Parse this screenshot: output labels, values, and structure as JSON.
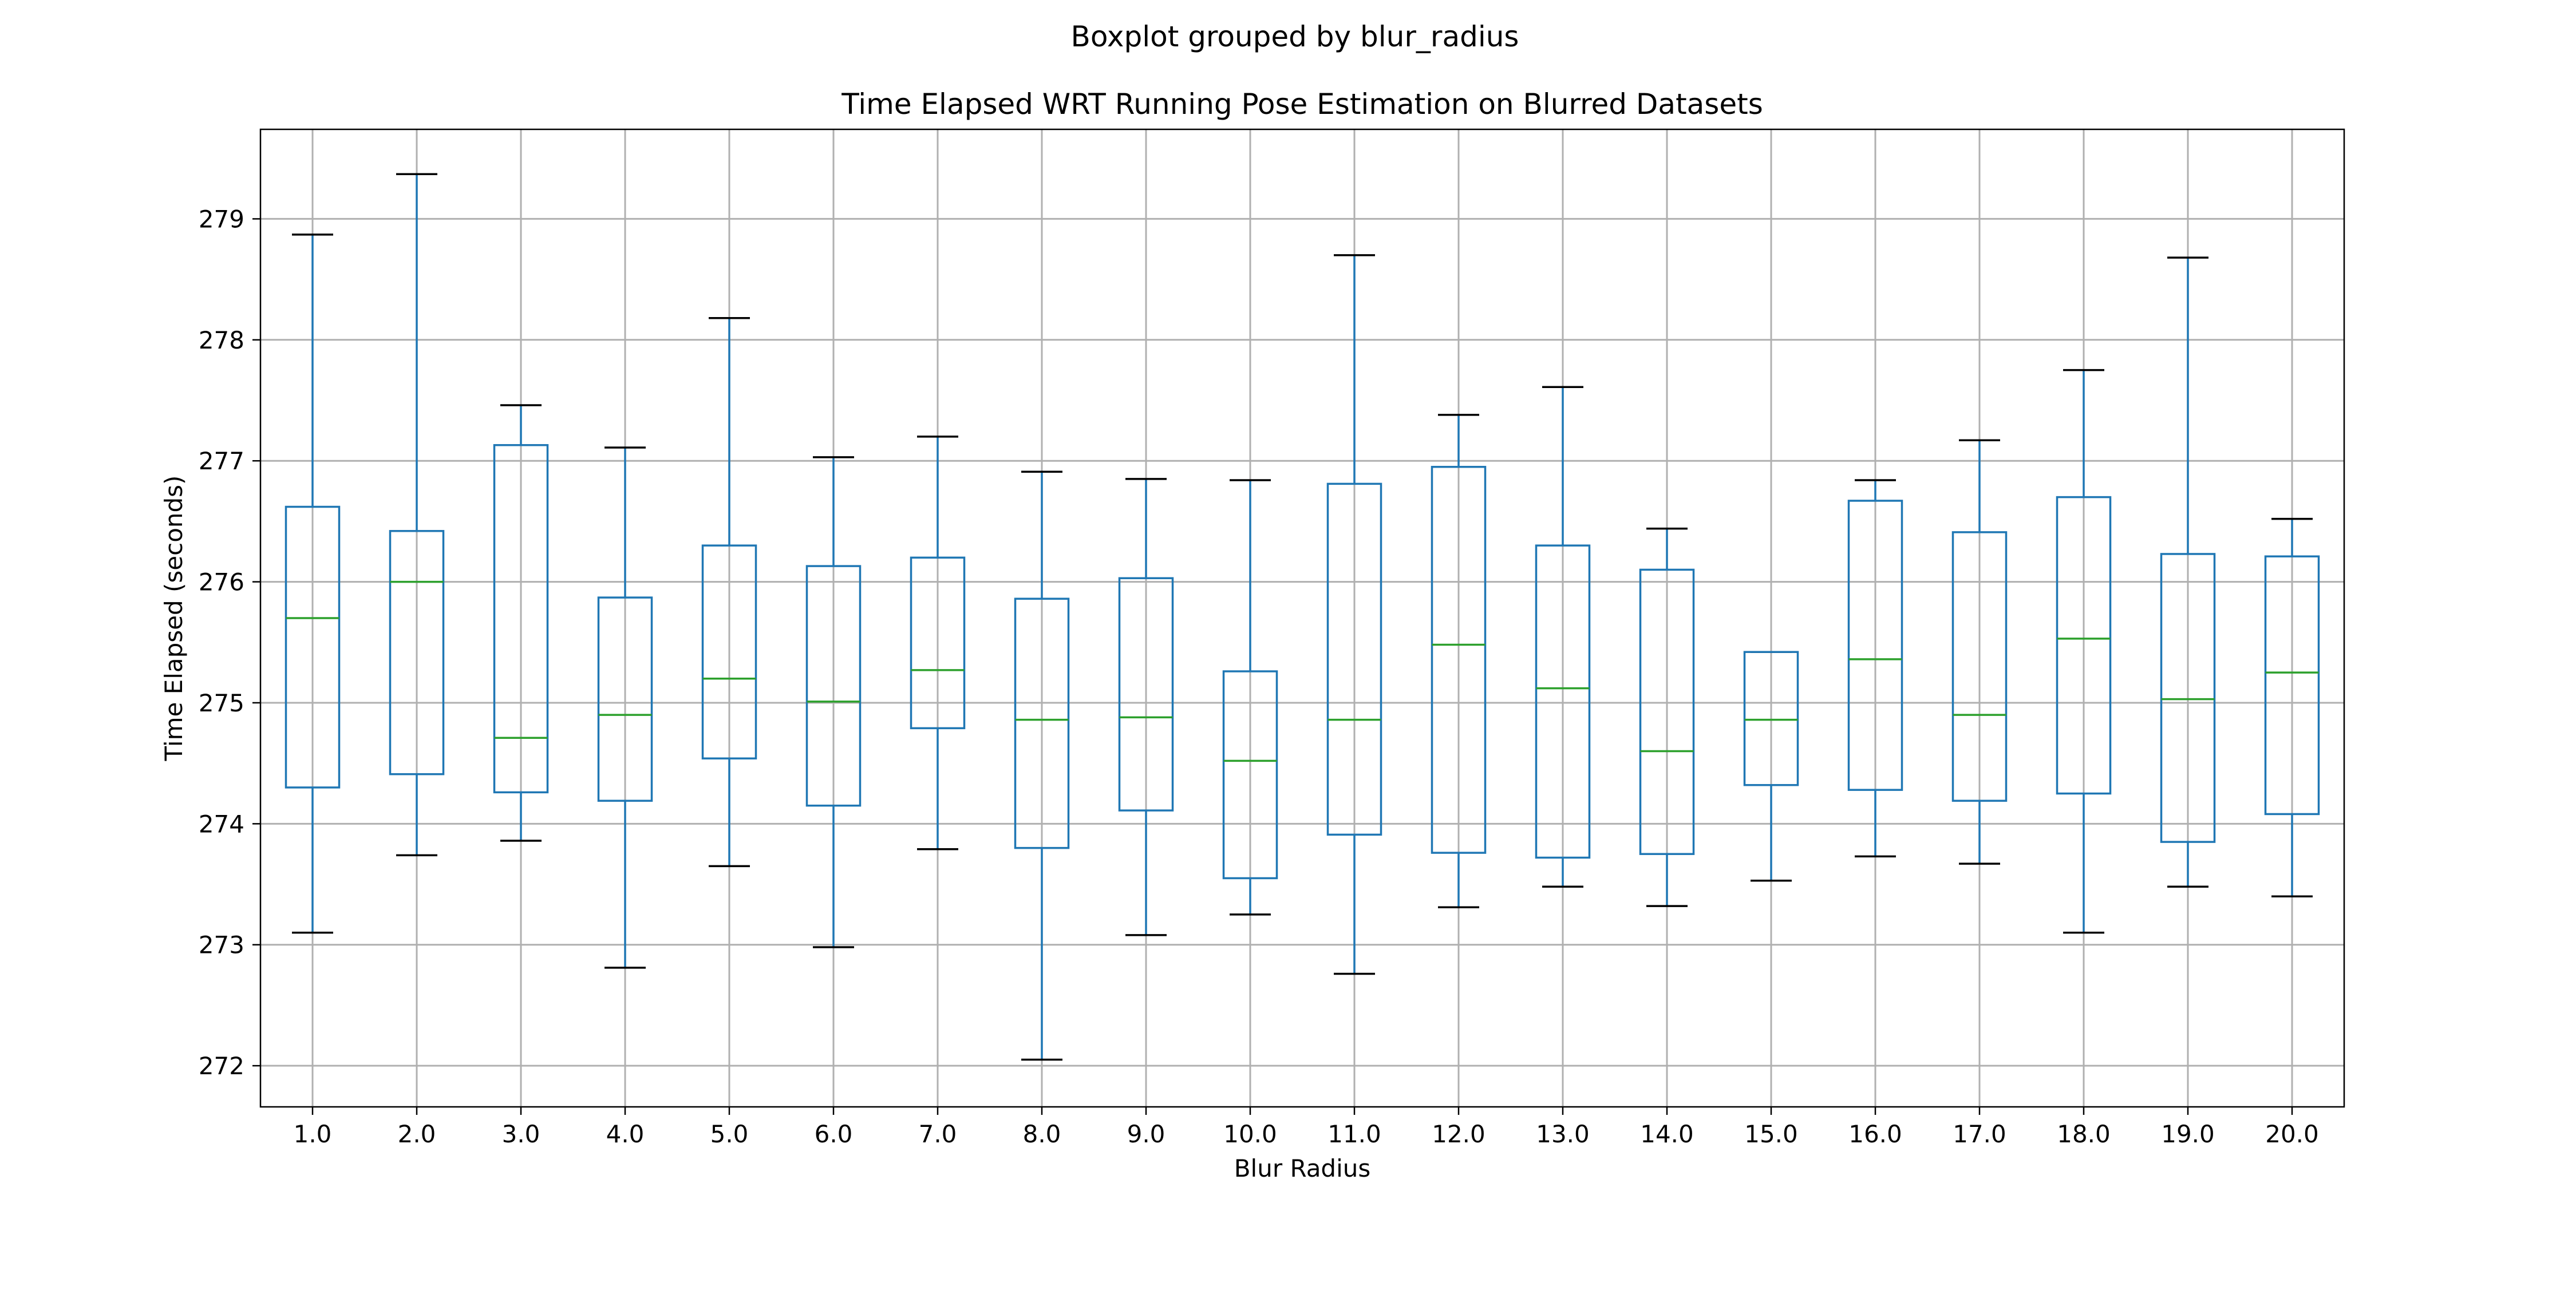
{
  "chart_data": {
    "type": "boxplot",
    "suptitle": "Boxplot grouped by blur_radius",
    "title": "Time Elapsed WRT Running Pose Estimation on Blurred Datasets",
    "xlabel": "Blur Radius",
    "ylabel": "Time Elapsed (seconds)",
    "categories": [
      "1.0",
      "2.0",
      "3.0",
      "4.0",
      "5.0",
      "6.0",
      "7.0",
      "8.0",
      "9.0",
      "10.0",
      "11.0",
      "12.0",
      "13.0",
      "14.0",
      "15.0",
      "16.0",
      "17.0",
      "18.0",
      "19.0",
      "20.0"
    ],
    "yticks": [
      272,
      273,
      274,
      275,
      276,
      277,
      278,
      279
    ],
    "ylim": [
      271.66,
      279.74
    ],
    "grid": true,
    "colors": {
      "box": "#1f77b4",
      "median": "#2ca02c",
      "cap": "#000000",
      "grid": "#b0b0b0"
    },
    "boxes": [
      {
        "whislo": 273.1,
        "q1": 274.3,
        "med": 275.7,
        "q3": 276.62,
        "whishi": 278.87
      },
      {
        "whislo": 273.74,
        "q1": 274.41,
        "med": 276.0,
        "q3": 276.42,
        "whishi": 279.37
      },
      {
        "whislo": 273.86,
        "q1": 274.26,
        "med": 274.71,
        "q3": 277.13,
        "whishi": 277.46
      },
      {
        "whislo": 272.81,
        "q1": 274.19,
        "med": 274.9,
        "q3": 275.87,
        "whishi": 277.11
      },
      {
        "whislo": 273.65,
        "q1": 274.54,
        "med": 275.2,
        "q3": 276.3,
        "whishi": 278.18
      },
      {
        "whislo": 272.98,
        "q1": 274.15,
        "med": 275.01,
        "q3": 276.13,
        "whishi": 277.03
      },
      {
        "whislo": 273.79,
        "q1": 274.79,
        "med": 275.27,
        "q3": 276.2,
        "whishi": 277.2
      },
      {
        "whislo": 272.05,
        "q1": 273.8,
        "med": 274.86,
        "q3": 275.86,
        "whishi": 276.91
      },
      {
        "whislo": 273.08,
        "q1": 274.11,
        "med": 274.88,
        "q3": 276.03,
        "whishi": 276.85
      },
      {
        "whislo": 273.25,
        "q1": 273.55,
        "med": 274.52,
        "q3": 275.26,
        "whishi": 276.84
      },
      {
        "whislo": 272.76,
        "q1": 273.91,
        "med": 274.86,
        "q3": 276.81,
        "whishi": 278.7
      },
      {
        "whislo": 273.31,
        "q1": 273.76,
        "med": 275.48,
        "q3": 276.95,
        "whishi": 277.38
      },
      {
        "whislo": 273.48,
        "q1": 273.72,
        "med": 275.12,
        "q3": 276.3,
        "whishi": 277.61
      },
      {
        "whislo": 273.32,
        "q1": 273.75,
        "med": 274.6,
        "q3": 276.1,
        "whishi": 276.44
      },
      {
        "whislo": 273.53,
        "q1": 274.32,
        "med": 274.86,
        "q3": 275.42,
        "whishi": 275.42
      },
      {
        "whislo": 273.73,
        "q1": 274.28,
        "med": 275.36,
        "q3": 276.67,
        "whishi": 276.84
      },
      {
        "whislo": 273.67,
        "q1": 274.19,
        "med": 274.9,
        "q3": 276.41,
        "whishi": 277.17
      },
      {
        "whislo": 273.1,
        "q1": 274.25,
        "med": 275.53,
        "q3": 276.7,
        "whishi": 277.75
      },
      {
        "whislo": 273.48,
        "q1": 273.85,
        "med": 275.03,
        "q3": 276.23,
        "whishi": 278.68
      },
      {
        "whislo": 273.4,
        "q1": 274.08,
        "med": 275.25,
        "q3": 276.21,
        "whishi": 276.52
      }
    ]
  }
}
